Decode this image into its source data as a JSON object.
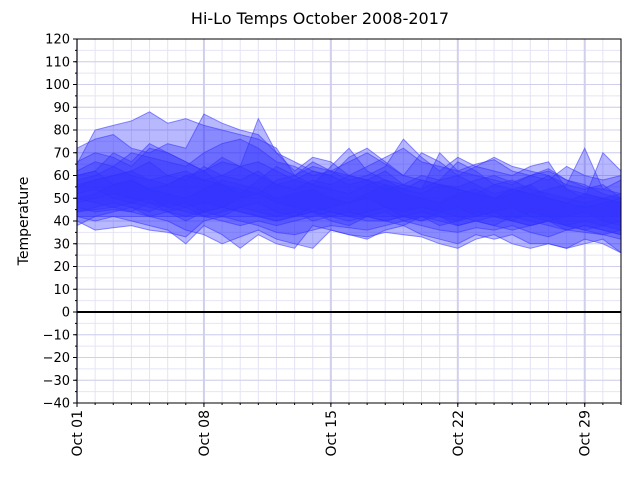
{
  "chart_data": {
    "type": "area",
    "title": "Hi-Lo Temps October 2008-2017",
    "xlabel": "",
    "ylabel": "Temperature",
    "ylim": [
      -40,
      120
    ],
    "yticks": [
      -40,
      -30,
      -20,
      -10,
      0,
      10,
      20,
      30,
      40,
      50,
      60,
      70,
      80,
      90,
      100,
      110,
      120
    ],
    "xlim": [
      1,
      31
    ],
    "xticks": [
      {
        "day": 1,
        "label": "Oct 01"
      },
      {
        "day": 8,
        "label": "Oct 08"
      },
      {
        "day": 15,
        "label": "Oct 15"
      },
      {
        "day": 22,
        "label": "Oct 22"
      },
      {
        "day": 29,
        "label": "Oct 29"
      }
    ],
    "grid": true,
    "reference_line": {
      "y": 0,
      "color": "#000000"
    },
    "fill_color": "#3333ff",
    "fill_alpha": 0.35,
    "days": [
      1,
      2,
      3,
      4,
      5,
      6,
      7,
      8,
      9,
      10,
      11,
      12,
      13,
      14,
      15,
      16,
      17,
      18,
      19,
      20,
      21,
      22,
      23,
      24,
      25,
      26,
      27,
      28,
      29,
      30,
      31
    ],
    "series": [
      {
        "high": [
          65,
          80,
          82,
          84,
          88,
          83,
          85,
          82,
          80,
          78,
          76,
          72,
          60,
          64,
          62,
          66,
          70,
          65,
          60,
          58,
          56,
          55,
          58,
          60,
          57,
          60,
          63,
          58,
          55,
          54,
          58
        ],
        "low": [
          40,
          36,
          37,
          38,
          36,
          35,
          33,
          40,
          42,
          40,
          38,
          35,
          34,
          36,
          38,
          37,
          36,
          38,
          40,
          38,
          36,
          35,
          37,
          36,
          38,
          35,
          33,
          36,
          35,
          34,
          32
        ]
      },
      {
        "high": [
          72,
          76,
          78,
          72,
          70,
          74,
          72,
          87,
          83,
          80,
          78,
          70,
          62,
          68,
          66,
          60,
          64,
          68,
          72,
          66,
          64,
          62,
          65,
          67,
          62,
          60,
          58,
          64,
          60,
          58,
          60
        ]
      },
      {
        "high": [
          60,
          62,
          70,
          66,
          74,
          70,
          66,
          62,
          66,
          64,
          85,
          70,
          66,
          62,
          60,
          68,
          72,
          66,
          60,
          70,
          66,
          60,
          64,
          68,
          64,
          62,
          60,
          56,
          72,
          54,
          52
        ],
        "low": [
          46,
          44,
          45,
          44,
          42,
          40,
          36,
          34,
          30,
          33,
          36,
          32,
          30,
          28,
          36,
          34,
          33,
          35,
          34,
          33,
          30,
          28,
          32,
          34,
          30,
          28,
          30,
          28,
          30,
          32,
          26
        ]
      },
      {
        "high": [
          58,
          60,
          64,
          70,
          68,
          66,
          64,
          70,
          74,
          76,
          72,
          66,
          64,
          60,
          62,
          58,
          60,
          64,
          76,
          68,
          62,
          68,
          64,
          62,
          60,
          64,
          66,
          54,
          50,
          70,
          62
        ],
        "low": [
          42,
          40,
          42,
          40,
          38,
          36,
          30,
          38,
          34,
          28,
          34,
          30,
          28,
          38,
          36,
          34,
          32,
          36,
          38,
          34,
          32,
          30,
          34,
          32,
          34,
          30,
          30,
          28,
          32,
          30,
          26
        ]
      },
      {
        "high": [
          55,
          58,
          60,
          62,
          58,
          60,
          62,
          58,
          60,
          64,
          66,
          62,
          58,
          56,
          64,
          72,
          62,
          58,
          56,
          54,
          70,
          62,
          60,
          58,
          56,
          60,
          62,
          58,
          56,
          52,
          50
        ],
        "low": [
          44,
          45,
          46,
          44,
          48,
          46,
          44,
          42,
          40,
          38,
          40,
          38,
          40,
          42,
          44,
          42,
          40,
          40,
          42,
          40,
          42,
          40,
          42,
          44,
          40,
          38,
          40,
          36,
          38,
          36,
          34
        ]
      },
      {
        "high": [
          62,
          66,
          64,
          60,
          58,
          56,
          60,
          62,
          56,
          52,
          58,
          64,
          60,
          66,
          62,
          60,
          58,
          54,
          56,
          60,
          58,
          66,
          62,
          56,
          54,
          52,
          54,
          56,
          54,
          56,
          50
        ],
        "low": [
          48,
          50,
          52,
          50,
          48,
          44,
          46,
          48,
          46,
          50,
          52,
          48,
          46,
          44,
          46,
          48,
          50,
          46,
          44,
          46,
          44,
          46,
          42,
          44,
          46,
          42,
          40,
          42,
          44,
          40,
          38
        ]
      },
      {
        "high": [
          50,
          52,
          56,
          58,
          54,
          52,
          50,
          54,
          58,
          56,
          54,
          50,
          52,
          54,
          50,
          48,
          52,
          56,
          52,
          50,
          48,
          52,
          54,
          50,
          52,
          56,
          50,
          48,
          46,
          48,
          50
        ],
        "low": [
          38,
          42,
          44,
          46,
          42,
          44,
          40,
          44,
          46,
          44,
          42,
          40,
          42,
          44,
          40,
          38,
          42,
          44,
          40,
          42,
          38,
          40,
          44,
          42,
          40,
          44,
          42,
          38,
          40,
          38,
          36
        ]
      },
      {
        "high": [
          66,
          70,
          68,
          64,
          72,
          70,
          66,
          62,
          68,
          64,
          60,
          56,
          58,
          62,
          60,
          56,
          58,
          62,
          56,
          54,
          58,
          60,
          56,
          52,
          54,
          56,
          60,
          54,
          52,
          50,
          48
        ],
        "low": [
          52,
          54,
          50,
          48,
          50,
          46,
          48,
          44,
          42,
          46,
          48,
          44,
          42,
          46,
          44,
          42,
          44,
          46,
          42,
          40,
          44,
          42,
          40,
          38,
          42,
          40,
          38,
          36,
          38,
          36,
          34
        ]
      },
      {
        "high": [
          56,
          58,
          60,
          62,
          66,
          60,
          58,
          64,
          60,
          58,
          62,
          56,
          54,
          58,
          56,
          60,
          58,
          56,
          54,
          58,
          56,
          54,
          52,
          56,
          58,
          54,
          52,
          50,
          48,
          50,
          52
        ],
        "low": [
          44,
          46,
          48,
          46,
          44,
          48,
          46,
          42,
          44,
          46,
          44,
          42,
          44,
          40,
          42,
          44,
          42,
          40,
          42,
          44,
          42,
          38,
          40,
          42,
          40,
          38,
          40,
          38,
          36,
          38,
          40
        ]
      },
      {
        "high": [
          60,
          62,
          56,
          58,
          54,
          56,
          60,
          58,
          56,
          54,
          52,
          58,
          60,
          56,
          54,
          52,
          56,
          58,
          54,
          52,
          56,
          54,
          52,
          50,
          54,
          52,
          50,
          48,
          52,
          50,
          48
        ],
        "low": [
          50,
          48,
          46,
          48,
          46,
          44,
          42,
          44,
          46,
          44,
          42,
          40,
          42,
          44,
          42,
          40,
          42,
          40,
          38,
          42,
          40,
          38,
          40,
          38,
          36,
          38,
          40,
          38,
          36,
          34,
          36
        ]
      }
    ]
  }
}
